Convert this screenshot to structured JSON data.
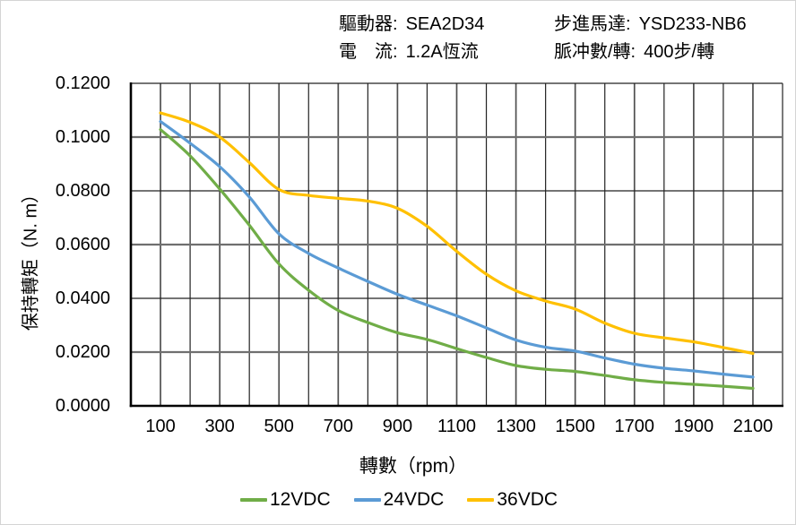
{
  "header": {
    "driver": {
      "label": "驅動器:",
      "value": "SEA2D34"
    },
    "current": {
      "label": "電　流:",
      "value": "1.2A恆流"
    },
    "motor": {
      "label": "步進馬達:",
      "value": "YSD233-NB6"
    },
    "pulses": {
      "label": "脈冲數/轉:",
      "value": "400步/轉"
    }
  },
  "chart_data": {
    "type": "line",
    "title": "",
    "xlabel": "轉數（rpm）",
    "ylabel": "保持轉矩（N. m）",
    "xlim": [
      0,
      2200
    ],
    "ylim": [
      0,
      0.12
    ],
    "grid": {
      "on": true,
      "x_step": 100,
      "y_step": 0.02
    },
    "legend_position": "bottom",
    "x_ticks": [
      100,
      300,
      500,
      700,
      900,
      1100,
      1300,
      1500,
      1700,
      1900,
      2100
    ],
    "y_ticks": [
      {
        "value": 0.0,
        "label": "0.0000"
      },
      {
        "value": 0.02,
        "label": "0.0200"
      },
      {
        "value": 0.04,
        "label": "0.0400"
      },
      {
        "value": 0.06,
        "label": "0.0600"
      },
      {
        "value": 0.08,
        "label": "0.0800"
      },
      {
        "value": 0.1,
        "label": "0.1000"
      },
      {
        "value": 0.12,
        "label": "0.1200"
      }
    ],
    "x": [
      100,
      200,
      300,
      400,
      500,
      600,
      700,
      800,
      900,
      1000,
      1100,
      1200,
      1300,
      1400,
      1500,
      1600,
      1700,
      1800,
      1900,
      2000,
      2100
    ],
    "series": [
      {
        "name": "12VDC",
        "color": "#70AD47",
        "values": [
          0.1028,
          0.093,
          0.0807,
          0.0672,
          0.0528,
          0.043,
          0.0355,
          0.031,
          0.0272,
          0.0247,
          0.0213,
          0.018,
          0.015,
          0.0136,
          0.0128,
          0.0113,
          0.0097,
          0.0087,
          0.008,
          0.0073,
          0.0065
        ]
      },
      {
        "name": "24VDC",
        "color": "#5B9BD5",
        "values": [
          0.1058,
          0.0977,
          0.089,
          0.0777,
          0.064,
          0.0567,
          0.0513,
          0.0463,
          0.0415,
          0.0375,
          0.0335,
          0.029,
          0.0245,
          0.0218,
          0.0204,
          0.0178,
          0.0155,
          0.014,
          0.013,
          0.0118,
          0.0107
        ]
      },
      {
        "name": "36VDC",
        "color": "#FFC000",
        "values": [
          0.109,
          0.1055,
          0.1,
          0.0905,
          0.0805,
          0.0783,
          0.0772,
          0.0762,
          0.0735,
          0.0668,
          0.0575,
          0.049,
          0.0428,
          0.039,
          0.036,
          0.0308,
          0.027,
          0.0253,
          0.0238,
          0.0217,
          0.0195
        ]
      }
    ],
    "style": {
      "grid_minor_color": "#222222",
      "grid_major_color": "#6f6f6f",
      "axis_color": "#000000"
    }
  }
}
